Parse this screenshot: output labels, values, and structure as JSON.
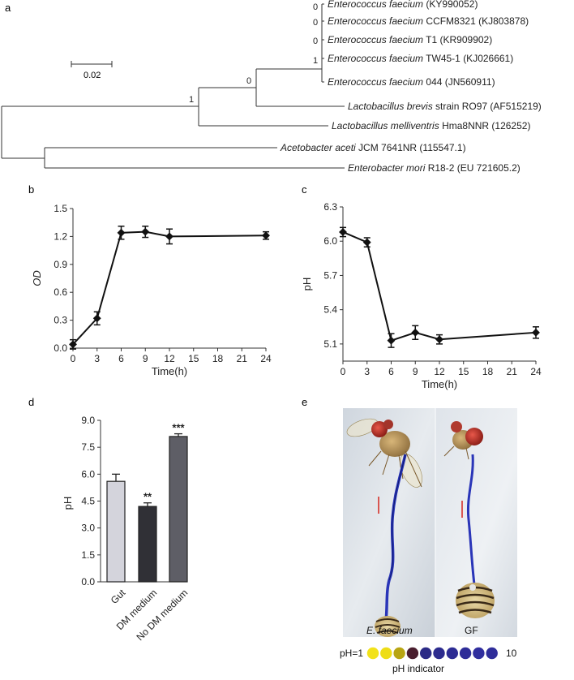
{
  "panels": {
    "a": "a",
    "b": "b",
    "c": "c",
    "d": "d",
    "e": "e"
  },
  "tree": {
    "scale_label": "0.02",
    "node_supports": {
      "ab_node": "1",
      "ent_node": "0",
      "ef_inner1": "1",
      "ef_inner2": "0",
      "ef_inner3": "0",
      "ef_top": "0"
    },
    "leaves": [
      {
        "italic": "Enterococcus faecium",
        "rest": " (KY990052)"
      },
      {
        "italic": "Enterococcus faecium",
        "rest": " CCFM8321 (KJ803878)"
      },
      {
        "italic": "Enterococcus faecium",
        "rest": " T1 (KR909902)"
      },
      {
        "italic": "Enterococcus faecium",
        "rest": " TW45-1 (KJ026661)"
      },
      {
        "italic": "Enterococcus faecium",
        "rest": " 044 (JN560911)"
      },
      {
        "italic": "Lactobacillus brevis",
        "rest": " strain RO97 (AF515219)"
      },
      {
        "italic": "Lactobacillus melliventris",
        "rest": " Hma8NNR (126252)"
      },
      {
        "italic": "Acetobacter aceti",
        "rest": " JCM 7641NR (115547.1)"
      },
      {
        "italic": "Enterobacter mori",
        "rest": " R18-2 (EU 721605.2)"
      }
    ]
  },
  "chart_data": [
    {
      "panel": "b",
      "type": "line",
      "xlabel": "Time(h)",
      "ylabel": "OD",
      "xlim": [
        0,
        24
      ],
      "ylim": [
        0,
        1.5
      ],
      "xticks": [
        "0",
        "3",
        "6",
        "9",
        "12",
        "15",
        "18",
        "21",
        "24"
      ],
      "yticks": [
        "0.0",
        "0.3",
        "0.6",
        "0.9",
        "1.2",
        "1.5"
      ],
      "x": [
        0,
        3,
        6,
        9,
        12,
        24
      ],
      "values": [
        0.04,
        0.32,
        1.24,
        1.25,
        1.2,
        1.21
      ],
      "errors": [
        0.05,
        0.07,
        0.07,
        0.06,
        0.08,
        0.04
      ]
    },
    {
      "panel": "c",
      "type": "line",
      "xlabel": "Time(h)",
      "ylabel": "pH",
      "xlim": [
        0,
        24
      ],
      "ylim": [
        4.95,
        6.3
      ],
      "yticks_values": [
        5.1,
        5.4,
        5.7,
        6.0,
        6.3
      ],
      "xticks": [
        "0",
        "3",
        "6",
        "9",
        "12",
        "15",
        "18",
        "21",
        "24"
      ],
      "yticks": [
        "5.1",
        "5.4",
        "5.7",
        "6.0",
        "6.3"
      ],
      "x": [
        0,
        3,
        6,
        9,
        12,
        24
      ],
      "values": [
        6.08,
        5.99,
        5.13,
        5.2,
        5.14,
        5.2
      ],
      "errors": [
        0.04,
        0.04,
        0.06,
        0.06,
        0.04,
        0.05
      ]
    },
    {
      "panel": "d",
      "type": "bar",
      "ylabel": "pH",
      "ylim": [
        0,
        9
      ],
      "yticks": [
        "0.0",
        "1.5",
        "3.0",
        "4.5",
        "6.0",
        "7.5",
        "9.0"
      ],
      "categories": [
        "Gut",
        "DM medium",
        "No DM medium"
      ],
      "values": [
        5.6,
        4.2,
        8.1
      ],
      "errors": [
        0.4,
        0.2,
        0.15
      ],
      "significance": [
        "",
        "**",
        "***"
      ],
      "colors": [
        "#d4d4dc",
        "#303036",
        "#5e5e66"
      ]
    }
  ],
  "photo": {
    "left_label": "E. faecium",
    "right_label": "GF",
    "scale_start": "pH=1",
    "scale_end": "10",
    "scale_title": "pH indicator",
    "scale_colors": [
      "#f2e21a",
      "#eedd16",
      "#b8a512",
      "#4a1e2e",
      "#2b2a86",
      "#2c2b8e",
      "#2d2c94",
      "#2e2d98",
      "#302e9e",
      "#2f2d9a"
    ]
  }
}
